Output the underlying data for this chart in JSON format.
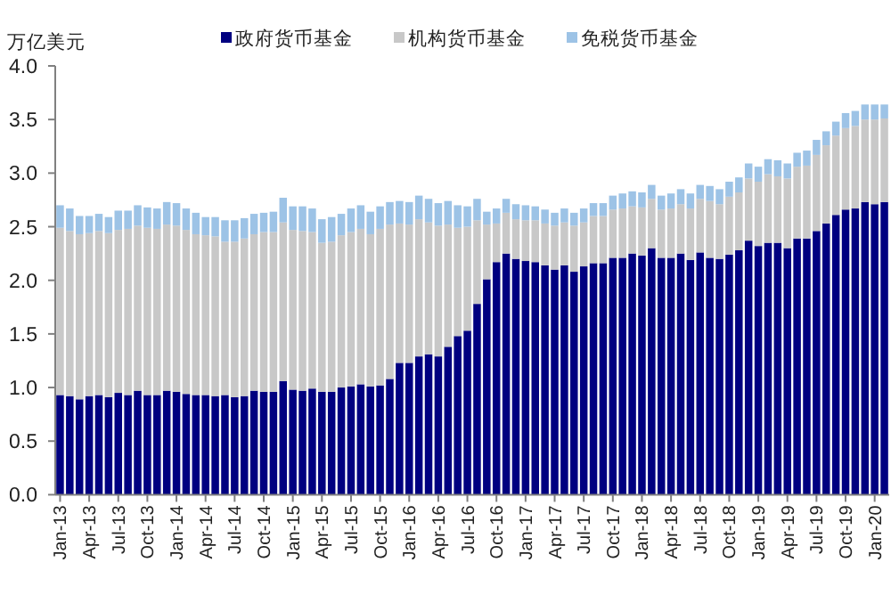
{
  "chart_data": {
    "type": "bar",
    "stacked": true,
    "ylabel": "万亿美元",
    "legend": "top",
    "categories": [
      "Jan-13",
      null,
      null,
      "Apr-13",
      null,
      null,
      "Jul-13",
      null,
      null,
      "Oct-13",
      null,
      null,
      "Jan-14",
      null,
      null,
      "Apr-14",
      null,
      null,
      "Jul-14",
      null,
      null,
      "Oct-14",
      null,
      null,
      "Jan-15",
      null,
      null,
      "Apr-15",
      null,
      null,
      "Jul-15",
      null,
      null,
      "Oct-15",
      null,
      null,
      "Jan-16",
      null,
      null,
      "Apr-16",
      null,
      null,
      "Jul-16",
      null,
      null,
      "Oct-16",
      null,
      null,
      "Jan-17",
      null,
      null,
      "Apr-17",
      null,
      null,
      "Jul-17",
      null,
      null,
      "Oct-17",
      null,
      null,
      "Jan-18",
      null,
      null,
      "Apr-18",
      null,
      null,
      "Jul-18",
      null,
      null,
      "Oct-18",
      null,
      null,
      "Jan-19",
      null,
      null,
      "Apr-19",
      null,
      null,
      "Jul-19",
      null,
      null,
      "Oct-19",
      null,
      null,
      "Jan-20",
      null
    ],
    "ylim": [
      0,
      4
    ],
    "yticks": [
      {
        "value": 0,
        "label": "0.0"
      },
      0.5,
      {
        "value": 1,
        "label": "1.0"
      },
      1.5,
      {
        "value": 2,
        "label": "2.0"
      },
      2.5,
      {
        "value": 3,
        "label": "3.0"
      },
      3.5,
      {
        "value": 4,
        "label": "4.0"
      }
    ],
    "series": [
      {
        "name": "政府货币基金",
        "color": "#000080",
        "values": [
          0.93,
          0.92,
          0.89,
          0.92,
          0.93,
          0.91,
          0.95,
          0.93,
          0.97,
          0.93,
          0.93,
          0.97,
          0.96,
          0.94,
          0.93,
          0.93,
          0.92,
          0.93,
          0.91,
          0.92,
          0.97,
          0.96,
          0.96,
          1.06,
          0.98,
          0.97,
          0.99,
          0.96,
          0.96,
          1.0,
          1.01,
          1.03,
          1.01,
          1.02,
          1.08,
          1.23,
          1.23,
          1.29,
          1.31,
          1.29,
          1.38,
          1.48,
          1.53,
          1.78,
          2.01,
          2.17,
          2.25,
          2.2,
          2.18,
          2.17,
          2.14,
          2.1,
          2.14,
          2.08,
          2.13,
          2.16,
          2.16,
          2.21,
          2.21,
          2.25,
          2.23,
          2.3,
          2.21,
          2.21,
          2.25,
          2.19,
          2.26,
          2.21,
          2.2,
          2.24,
          2.28,
          2.37,
          2.32,
          2.35,
          2.35,
          2.3,
          2.39,
          2.39,
          2.46,
          2.53,
          2.61,
          2.66,
          2.67,
          2.73,
          2.71,
          2.73
        ]
      },
      {
        "name": "机构货币基金",
        "color": "#c8c8c8",
        "values": [
          1.56,
          1.54,
          1.54,
          1.52,
          1.53,
          1.53,
          1.52,
          1.55,
          1.54,
          1.56,
          1.55,
          1.55,
          1.55,
          1.53,
          1.5,
          1.49,
          1.49,
          1.43,
          1.45,
          1.47,
          1.46,
          1.49,
          1.49,
          1.48,
          1.49,
          1.49,
          1.46,
          1.39,
          1.4,
          1.42,
          1.44,
          1.45,
          1.42,
          1.46,
          1.44,
          1.3,
          1.29,
          1.28,
          1.23,
          1.22,
          1.14,
          1.01,
          0.97,
          0.78,
          0.51,
          0.36,
          0.38,
          0.37,
          0.38,
          0.39,
          0.39,
          0.41,
          0.4,
          0.43,
          0.41,
          0.44,
          0.44,
          0.45,
          0.46,
          0.44,
          0.45,
          0.46,
          0.45,
          0.46,
          0.46,
          0.48,
          0.5,
          0.53,
          0.51,
          0.54,
          0.54,
          0.58,
          0.6,
          0.64,
          0.62,
          0.65,
          0.67,
          0.68,
          0.71,
          0.73,
          0.74,
          0.76,
          0.77,
          0.77,
          0.79,
          0.78
        ]
      },
      {
        "name": "免税货币基金",
        "color": "#9dc3e6",
        "values": [
          0.21,
          0.21,
          0.17,
          0.16,
          0.16,
          0.15,
          0.18,
          0.17,
          0.19,
          0.19,
          0.19,
          0.21,
          0.21,
          0.2,
          0.2,
          0.17,
          0.18,
          0.2,
          0.2,
          0.19,
          0.19,
          0.18,
          0.19,
          0.23,
          0.22,
          0.23,
          0.22,
          0.22,
          0.23,
          0.2,
          0.22,
          0.22,
          0.21,
          0.21,
          0.21,
          0.21,
          0.21,
          0.22,
          0.22,
          0.21,
          0.22,
          0.21,
          0.19,
          0.2,
          0.12,
          0.14,
          0.13,
          0.14,
          0.14,
          0.13,
          0.13,
          0.12,
          0.13,
          0.12,
          0.13,
          0.12,
          0.12,
          0.13,
          0.14,
          0.14,
          0.14,
          0.13,
          0.13,
          0.14,
          0.14,
          0.14,
          0.13,
          0.14,
          0.14,
          0.14,
          0.14,
          0.14,
          0.14,
          0.14,
          0.15,
          0.14,
          0.13,
          0.14,
          0.14,
          0.13,
          0.13,
          0.14,
          0.14,
          0.14,
          0.14,
          0.13
        ]
      }
    ]
  }
}
